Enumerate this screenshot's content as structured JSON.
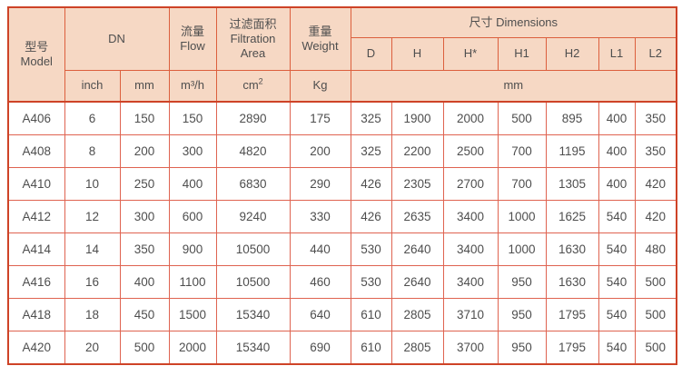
{
  "colors": {
    "header_bg": "#f6d8c4",
    "header_border": "#dc5f3d",
    "body_border": "#df6350",
    "outer_border": "#ce4327",
    "text": "#4e4e4e",
    "body_bg": "#ffffff"
  },
  "header": {
    "model_zh": "型号",
    "model_en": "Model",
    "dn": "DN",
    "flow_zh": "流量",
    "flow_en": "Flow",
    "filtration_zh": "过滤面积",
    "filtration_en1": "Filtration",
    "filtration_en2": "Area",
    "weight_zh": "重量",
    "weight_en": "Weight",
    "dimensions": "尺寸 Dimensions",
    "dim_cols": [
      "D",
      "H",
      "H*",
      "H1",
      "H2",
      "L1",
      "L2"
    ],
    "units": {
      "inch": "inch",
      "mm": "mm",
      "flow": "m³/h",
      "area_base": "cm",
      "area_sup": "2",
      "weight": "Kg",
      "dim": "mm"
    }
  },
  "columns_order": [
    "model",
    "dn_inch",
    "dn_mm",
    "flow_m3h",
    "filtration_cm2",
    "weight_kg",
    "D",
    "H",
    "H_star",
    "H1",
    "H2",
    "L1",
    "L2"
  ],
  "rows": [
    [
      "A406",
      "6",
      "150",
      "150",
      "2890",
      "175",
      "325",
      "1900",
      "2000",
      "500",
      "895",
      "400",
      "350"
    ],
    [
      "A408",
      "8",
      "200",
      "300",
      "4820",
      "200",
      "325",
      "2200",
      "2500",
      "700",
      "1195",
      "400",
      "350"
    ],
    [
      "A410",
      "10",
      "250",
      "400",
      "6830",
      "290",
      "426",
      "2305",
      "2700",
      "700",
      "1305",
      "400",
      "420"
    ],
    [
      "A412",
      "12",
      "300",
      "600",
      "9240",
      "330",
      "426",
      "2635",
      "3400",
      "1000",
      "1625",
      "540",
      "420"
    ],
    [
      "A414",
      "14",
      "350",
      "900",
      "10500",
      "440",
      "530",
      "2640",
      "3400",
      "1000",
      "1630",
      "540",
      "480"
    ],
    [
      "A416",
      "16",
      "400",
      "1100",
      "10500",
      "460",
      "530",
      "2640",
      "3400",
      "950",
      "1630",
      "540",
      "500"
    ],
    [
      "A418",
      "18",
      "450",
      "1500",
      "15340",
      "640",
      "610",
      "2805",
      "3710",
      "950",
      "1795",
      "540",
      "500"
    ],
    [
      "A420",
      "20",
      "500",
      "2000",
      "15340",
      "690",
      "610",
      "2805",
      "3700",
      "950",
      "1795",
      "540",
      "500"
    ]
  ]
}
